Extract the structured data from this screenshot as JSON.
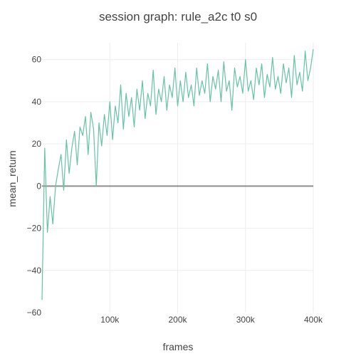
{
  "chart_data": {
    "type": "line",
    "title": "session graph: rule_a2c t0 s0",
    "xlabel": "frames",
    "ylabel": "mean_return",
    "xlim": [
      0,
      400000
    ],
    "ylim": [
      -60,
      68
    ],
    "grid": true,
    "legend": "none",
    "x_ticks": [
      {
        "value": 100000,
        "label": "100k"
      },
      {
        "value": 200000,
        "label": "200k"
      },
      {
        "value": 300000,
        "label": "300k"
      },
      {
        "value": 400000,
        "label": "400k"
      }
    ],
    "y_ticks": [
      {
        "value": 60,
        "label": "60"
      },
      {
        "value": 40,
        "label": "40"
      },
      {
        "value": 20,
        "label": "20"
      },
      {
        "value": 0,
        "label": "0"
      },
      {
        "value": -20,
        "label": "−20"
      },
      {
        "value": -40,
        "label": "−40"
      },
      {
        "value": -60,
        "label": "−60"
      }
    ],
    "series": [
      {
        "color": "#66c2a5",
        "x": [
          0,
          4000,
          8000,
          12000,
          16000,
          20000,
          24000,
          28000,
          32000,
          36000,
          40000,
          44000,
          48000,
          52000,
          56000,
          60000,
          64000,
          68000,
          72000,
          76000,
          80000,
          84000,
          88000,
          92000,
          96000,
          100000,
          104000,
          108000,
          112000,
          116000,
          120000,
          124000,
          128000,
          132000,
          136000,
          140000,
          144000,
          148000,
          152000,
          156000,
          160000,
          164000,
          168000,
          172000,
          176000,
          180000,
          184000,
          188000,
          192000,
          196000,
          200000,
          204000,
          208000,
          212000,
          216000,
          220000,
          224000,
          228000,
          232000,
          236000,
          240000,
          244000,
          248000,
          252000,
          256000,
          260000,
          264000,
          268000,
          272000,
          276000,
          280000,
          284000,
          288000,
          292000,
          296000,
          300000,
          304000,
          308000,
          312000,
          316000,
          320000,
          324000,
          328000,
          332000,
          336000,
          340000,
          344000,
          348000,
          352000,
          356000,
          360000,
          364000,
          368000,
          372000,
          376000,
          380000,
          384000,
          388000,
          392000,
          396000,
          400000
        ],
        "y": [
          -54,
          18,
          -22,
          -5,
          -18,
          0,
          8,
          15,
          -2,
          22,
          6,
          18,
          26,
          10,
          28,
          24,
          33,
          15,
          35,
          27,
          0,
          30,
          19,
          34,
          24,
          40,
          22,
          38,
          30,
          48,
          27,
          44,
          33,
          42,
          28,
          46,
          36,
          50,
          32,
          44,
          38,
          55,
          34,
          46,
          40,
          52,
          36,
          48,
          42,
          56,
          38,
          50,
          40,
          54,
          42,
          48,
          38,
          56,
          43,
          50,
          44,
          58,
          40,
          52,
          46,
          55,
          40,
          59,
          45,
          50,
          36,
          56,
          47,
          52,
          44,
          60,
          45,
          50,
          41,
          56,
          48,
          58,
          42,
          53,
          47,
          61,
          46,
          52,
          44,
          58,
          49,
          56,
          42,
          62,
          48,
          54,
          45,
          64,
          50,
          56,
          65
        ]
      }
    ]
  }
}
